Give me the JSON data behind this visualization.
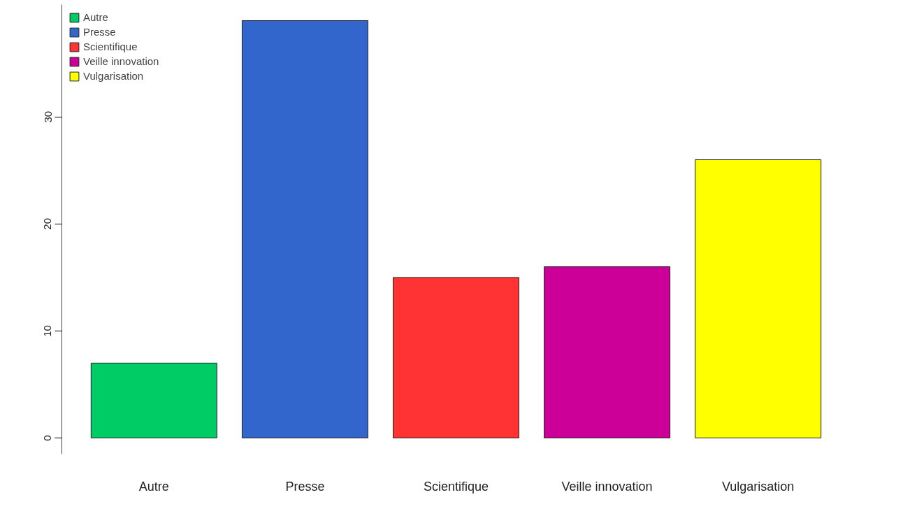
{
  "chart_data": {
    "type": "bar",
    "categories": [
      "Autre",
      "Presse",
      "Scientifique",
      "Veille innovation",
      "Vulgarisation"
    ],
    "series": [
      {
        "name": "Autre",
        "color": "#00cc66",
        "values": [
          7,
          null,
          null,
          null,
          null
        ]
      },
      {
        "name": "Presse",
        "color": "#3366cc",
        "values": [
          null,
          39,
          null,
          null,
          null
        ]
      },
      {
        "name": "Scientifique",
        "color": "#ff3333",
        "values": [
          null,
          null,
          15,
          null,
          null
        ]
      },
      {
        "name": "Veille innovation",
        "color": "#cc0099",
        "values": [
          null,
          null,
          null,
          16,
          null
        ]
      },
      {
        "name": "Vulgarisation",
        "color": "#ffff00",
        "values": [
          null,
          null,
          null,
          null,
          26
        ]
      }
    ],
    "ylim": [
      -1.5,
      40.5
    ],
    "yticks": [
      0,
      10,
      20,
      30
    ],
    "grid": false,
    "legend": "top left"
  }
}
